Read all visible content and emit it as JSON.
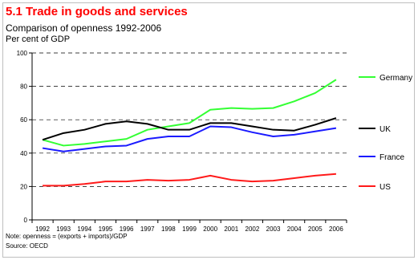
{
  "title": "5.1 Trade in goods and services",
  "subtitle": "Comparison of openness 1992-2006",
  "chart_data": {
    "type": "line",
    "title": "5.1 Trade in goods and services",
    "subtitle": "Comparison of openness 1992-2006",
    "ylabel": "Per cent of GDP",
    "xlabel": "",
    "x": [
      "1992",
      "1993",
      "1994",
      "1995",
      "1996",
      "1997",
      "1998",
      "1999",
      "2000",
      "2001",
      "2002",
      "2003",
      "2004",
      "2005",
      "2006"
    ],
    "ylim": [
      0,
      100
    ],
    "yticks": [
      0,
      20,
      40,
      60,
      80,
      100
    ],
    "grid": "dashed horizontal",
    "legend_position": "right",
    "series": [
      {
        "name": "Germany",
        "color": "#33ff33",
        "values": [
          48,
          44.5,
          45.5,
          47,
          48.5,
          54,
          56,
          58,
          66,
          67,
          66.5,
          67,
          71,
          76,
          84
        ]
      },
      {
        "name": "UK",
        "color": "#000000",
        "values": [
          48,
          52,
          54,
          57.5,
          59,
          57.5,
          54,
          54,
          58,
          58,
          56,
          54,
          53.5,
          57,
          61
        ]
      },
      {
        "name": "France",
        "color": "#1a1aff",
        "values": [
          43,
          41,
          42.5,
          44,
          44.5,
          48.5,
          50,
          50,
          56,
          55.5,
          52.5,
          50,
          51,
          53,
          55
        ]
      },
      {
        "name": "US",
        "color": "#ff1a1a",
        "values": [
          20.5,
          20.5,
          21.5,
          23,
          23,
          24,
          23.5,
          24,
          26.5,
          24,
          23,
          23.5,
          25,
          26.5,
          27.5
        ]
      }
    ]
  },
  "notes": {
    "note": "Note: openness = (exports + imports)/GDP",
    "source": "Source: OECD"
  }
}
